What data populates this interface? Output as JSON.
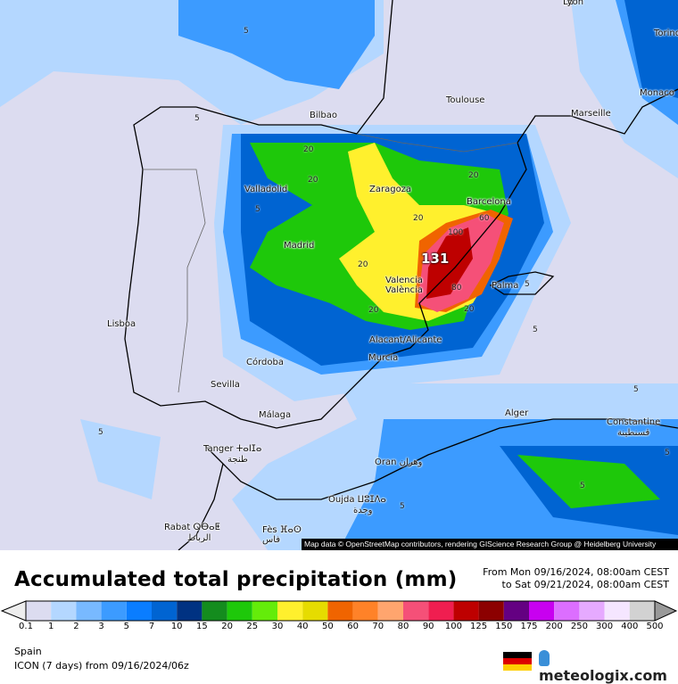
{
  "map": {
    "max_value_label": "131",
    "credit": "Map data © OpenStreetMap contributors, rendering GIScience Research Group @ Heidelberg University",
    "cities": [
      {
        "name": "Lyon"
      },
      {
        "name": "Torino"
      },
      {
        "name": "Monaco"
      },
      {
        "name": "Toulouse"
      },
      {
        "name": "Marseille"
      },
      {
        "name": "Bilbao"
      },
      {
        "name": "Valladolid"
      },
      {
        "name": "Zaragoza"
      },
      {
        "name": "Barcelona"
      },
      {
        "name": "Madrid"
      },
      {
        "name": "Valencia"
      },
      {
        "name": "València"
      },
      {
        "name": "Palma"
      },
      {
        "name": "Lisboa"
      },
      {
        "name": "Alacant/Alicante"
      },
      {
        "name": "Murcia"
      },
      {
        "name": "Córdoba"
      },
      {
        "name": "Sevilla"
      },
      {
        "name": "Málaga"
      },
      {
        "name": "Alger"
      },
      {
        "name": "Constantine"
      },
      {
        "name": "قسنطينة"
      },
      {
        "name": "Tanger ⵜⴰⵏⵊⴰ"
      },
      {
        "name": "طنجة"
      },
      {
        "name": "Oran وهران"
      },
      {
        "name": "Oujda ⵡⵓⵊⴷⴰ"
      },
      {
        "name": "وجدة"
      },
      {
        "name": "Rabat ⵕⴱⴰⵟ"
      },
      {
        "name": "الرباط"
      },
      {
        "name": "Fès ⴼⴰⵙ"
      },
      {
        "name": "فاس"
      }
    ],
    "contour_labels": [
      "5",
      "5",
      "5",
      "5",
      "5",
      "5",
      "5",
      "5",
      "20",
      "20",
      "20",
      "20",
      "20",
      "20",
      "20",
      "60",
      "80",
      "100",
      "5",
      "5"
    ]
  },
  "legend": {
    "title": "Accumulated total precipitation (mm)",
    "period_from": "From Mon 09/16/2024, 08:00am CEST",
    "period_to": "to Sat 09/21/2024, 08:00am CEST",
    "under_color": "#eeeeee",
    "over_color": "#999999",
    "ticks": [
      "0.1",
      "1",
      "2",
      "3",
      "5",
      "7",
      "10",
      "15",
      "20",
      "25",
      "30",
      "40",
      "50",
      "60",
      "70",
      "80",
      "90",
      "100",
      "125",
      "150",
      "175",
      "200",
      "250",
      "300",
      "400",
      "500"
    ],
    "colors": [
      "#dcdcf0",
      "#b4d7ff",
      "#78b9ff",
      "#3c9bff",
      "#0a7dff",
      "#0064d2",
      "#003282",
      "#148c1e",
      "#1ec80a",
      "#64ec0a",
      "#fff02d",
      "#e6dc00",
      "#f06400",
      "#ff8228",
      "#ffa56e",
      "#f55078",
      "#f01e50",
      "#be0000",
      "#8c0000",
      "#640082",
      "#c800f0",
      "#dc6eff",
      "#e6aaff",
      "#f5e6ff",
      "#d2d2d2"
    ]
  },
  "footer": {
    "region": "Spain",
    "model": "ICON (7 days)  from  09/16/2024/06z",
    "logo": "meteologix.com",
    "flag_colors": [
      "#000000",
      "#dd0000",
      "#ffce00"
    ]
  }
}
